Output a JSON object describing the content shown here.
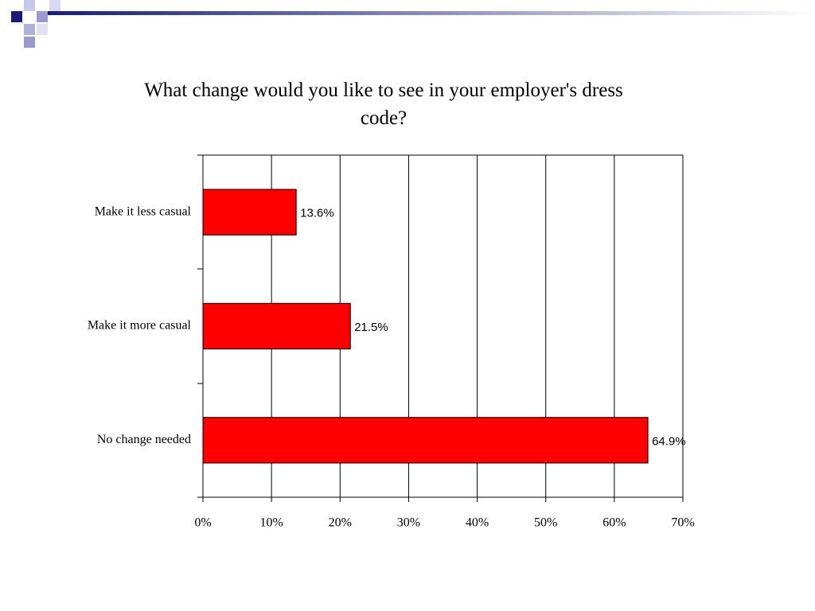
{
  "chart_data": {
    "type": "hbar",
    "title": "What change would you like to see in your employer's dress code?",
    "categories": [
      "Make it less casual",
      "Make it more casual",
      "No change needed"
    ],
    "values": [
      13.6,
      21.5,
      64.9
    ],
    "value_labels": [
      "13.6%",
      "21.5%",
      "64.9%"
    ],
    "color": "#ff0000",
    "xlim": [
      0,
      70
    ],
    "xticks": [
      {
        "value": 0,
        "label": "0%"
      },
      {
        "value": 10,
        "label": "10%"
      },
      {
        "value": 20,
        "label": "20%"
      },
      {
        "value": 30,
        "label": "30%"
      },
      {
        "value": 40,
        "label": "40%"
      },
      {
        "value": 50,
        "label": "50%"
      },
      {
        "value": 60,
        "label": "60%"
      },
      {
        "value": 70,
        "label": "70%"
      }
    ],
    "grid": true
  }
}
